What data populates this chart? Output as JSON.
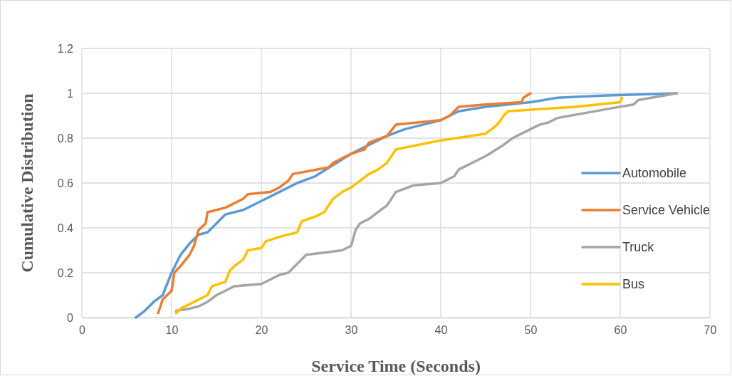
{
  "chart_data": {
    "type": "line",
    "xlabel": "Service Time (Seconds)",
    "ylabel": "Cumulative Distribution",
    "xlim": [
      0,
      70
    ],
    "xticks": [
      0,
      10,
      20,
      30,
      40,
      50,
      60,
      70
    ],
    "ylim": [
      0,
      1.2
    ],
    "yticks": [
      0,
      0.2,
      0.4,
      0.6,
      0.8,
      1,
      1.2
    ],
    "grid": true,
    "legend": "right",
    "marker": "none",
    "line_style": "solid",
    "series": [
      {
        "name": "Automobile",
        "color": "#5b9bd5",
        "x": [
          6,
          7,
          8,
          9,
          10,
          11,
          12,
          13,
          14,
          15,
          16,
          18,
          20,
          22,
          24,
          26,
          28,
          30,
          32,
          34,
          36,
          38,
          40,
          42,
          45,
          50,
          53,
          58,
          66.3
        ],
        "values": [
          0,
          0.03,
          0.07,
          0.1,
          0.2,
          0.28,
          0.33,
          0.37,
          0.38,
          0.42,
          0.46,
          0.48,
          0.52,
          0.56,
          0.6,
          0.63,
          0.68,
          0.73,
          0.77,
          0.81,
          0.84,
          0.86,
          0.88,
          0.92,
          0.94,
          0.96,
          0.98,
          0.99,
          1
        ]
      },
      {
        "name": "Service Vehicle",
        "color": "#ed7d31",
        "x": [
          8.5,
          9,
          10,
          10.3,
          11,
          12,
          12.5,
          13,
          13.8,
          14,
          16,
          18,
          18.5,
          21,
          22,
          23,
          23.5,
          27.5,
          28,
          30,
          31.5,
          32,
          34,
          35,
          40,
          41,
          42,
          45,
          49,
          49.2,
          50
        ],
        "values": [
          0.02,
          0.08,
          0.12,
          0.2,
          0.23,
          0.28,
          0.32,
          0.39,
          0.42,
          0.47,
          0.49,
          0.53,
          0.55,
          0.56,
          0.58,
          0.61,
          0.64,
          0.67,
          0.69,
          0.73,
          0.75,
          0.78,
          0.81,
          0.86,
          0.88,
          0.9,
          0.94,
          0.95,
          0.96,
          0.98,
          1
        ]
      },
      {
        "name": "Truck",
        "color": "#a5a5a5",
        "x": [
          10.5,
          12,
          13,
          14,
          15,
          16,
          17,
          20,
          21,
          22,
          23,
          24,
          25,
          27,
          29,
          30,
          30.5,
          31,
          32,
          33,
          34,
          35,
          37,
          40,
          41.5,
          42,
          45,
          47,
          48,
          50,
          51,
          52,
          53,
          60,
          61.5,
          62,
          66.3
        ],
        "values": [
          0.03,
          0.04,
          0.05,
          0.07,
          0.1,
          0.12,
          0.14,
          0.15,
          0.17,
          0.19,
          0.2,
          0.24,
          0.28,
          0.29,
          0.3,
          0.32,
          0.39,
          0.42,
          0.44,
          0.47,
          0.5,
          0.56,
          0.59,
          0.6,
          0.63,
          0.66,
          0.72,
          0.77,
          0.8,
          0.84,
          0.86,
          0.87,
          0.89,
          0.94,
          0.95,
          0.97,
          1
        ]
      },
      {
        "name": "Bus",
        "color": "#ffc000",
        "x": [
          10.5,
          11,
          12,
          14,
          14.5,
          16,
          16.5,
          17,
          18,
          18.5,
          20,
          20.5,
          22,
          24,
          24.5,
          26,
          27,
          27.5,
          28,
          29,
          30,
          31,
          32,
          33,
          34,
          35,
          40,
          45,
          46,
          46.5,
          47,
          47.5,
          55,
          60,
          60.2
        ],
        "values": [
          0.02,
          0.04,
          0.06,
          0.1,
          0.14,
          0.16,
          0.21,
          0.23,
          0.26,
          0.3,
          0.31,
          0.34,
          0.36,
          0.38,
          0.43,
          0.45,
          0.47,
          0.5,
          0.53,
          0.56,
          0.58,
          0.61,
          0.64,
          0.66,
          0.69,
          0.75,
          0.79,
          0.82,
          0.85,
          0.87,
          0.9,
          0.92,
          0.94,
          0.96,
          0.98
        ]
      }
    ]
  }
}
